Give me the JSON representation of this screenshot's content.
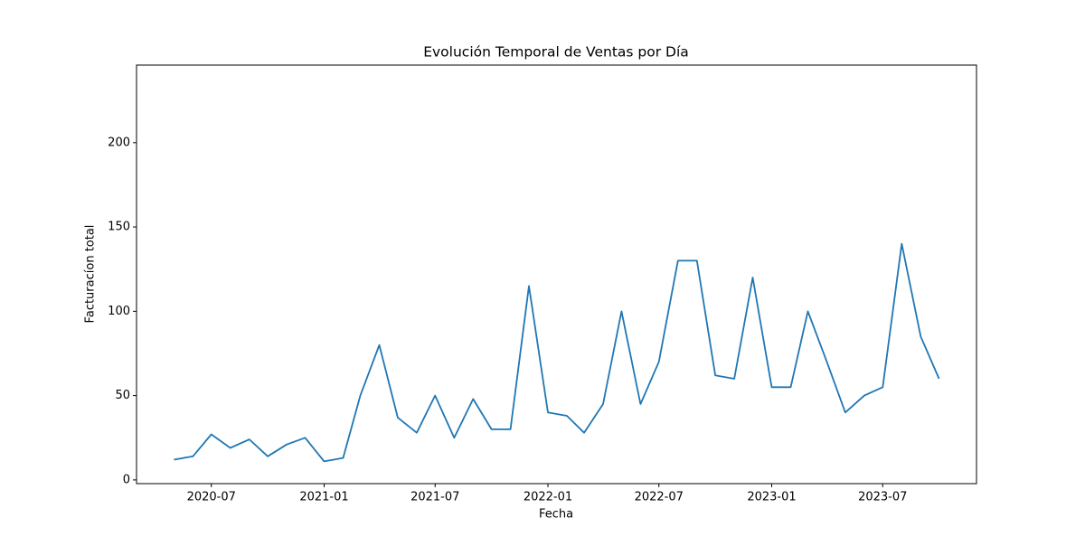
{
  "chart_data": {
    "type": "line",
    "title": "Evolución Temporal de Ventas por Día",
    "x_label": "Fecha",
    "y_label": "Facturacíon total",
    "x": [
      "2020-05",
      "2020-06",
      "2020-07",
      "2020-08",
      "2020-09",
      "2020-10",
      "2020-11",
      "2020-12",
      "2021-01",
      "2021-02",
      "2021-03",
      "2021-04",
      "2021-05",
      "2021-06",
      "2021-07",
      "2021-08",
      "2021-09",
      "2021-10",
      "2021-11",
      "2021-12",
      "2022-01",
      "2022-02",
      "2022-03",
      "2022-04",
      "2022-05",
      "2022-06",
      "2022-07",
      "2022-08",
      "2022-09",
      "2022-10",
      "2022-11",
      "2022-12",
      "2023-01",
      "2023-02",
      "2023-03",
      "2023-04",
      "2023-05",
      "2023-06",
      "2023-07",
      "2023-08",
      "2023-09",
      "2023-10"
    ],
    "series": [
      {
        "color": "#1f77b4",
        "values": [
          12,
          14,
          27,
          19,
          24,
          14,
          21,
          25,
          11,
          13,
          50,
          80,
          37,
          28,
          50,
          25,
          48,
          30,
          30,
          115,
          40,
          38,
          28,
          45,
          100,
          45,
          70,
          130,
          130,
          62,
          60,
          120,
          55,
          55,
          100,
          70,
          40,
          50,
          55,
          140,
          85,
          60
        ]
      }
    ],
    "xlim": [
      "2020-03",
      "2023-12"
    ],
    "xticks": [
      "2020-07",
      "2021-01",
      "2021-07",
      "2022-01",
      "2022-07",
      "2023-01",
      "2023-07"
    ],
    "ylim": [
      -2.2,
      246
    ],
    "yticks": [
      0,
      50,
      100,
      150,
      200
    ],
    "grid": false
  }
}
